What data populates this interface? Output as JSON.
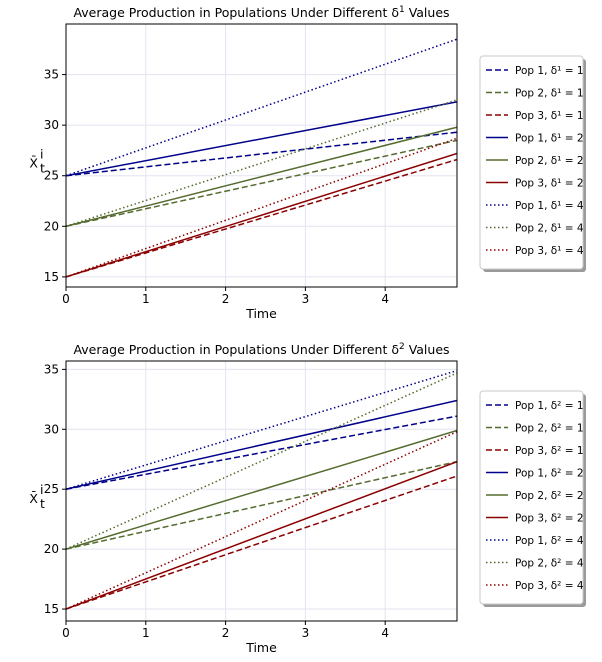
{
  "chart_data": [
    {
      "type": "line",
      "title": "Average Production in Populations Under Different δ",
      "title_sup": "1",
      "title_tail": " Values",
      "ylabel": "X̄",
      "ylabel_sup": "i",
      "ylabel_sub": "t",
      "xlabel": "Time",
      "xlim": [
        0,
        4.9
      ],
      "ylim": [
        14,
        40
      ],
      "xticks": [
        "0",
        "1",
        "2",
        "3",
        "4"
      ],
      "yticks": [
        "15",
        "20",
        "25",
        "30",
        "35"
      ],
      "xtick_values": [
        0,
        1,
        2,
        3,
        4
      ],
      "ytick_values": [
        15,
        20,
        25,
        30,
        35
      ],
      "grid": true,
      "legend_position": "right",
      "series": [
        {
          "name": "Pop 1, δ¹ = 1",
          "color": "#00008b",
          "dash": "dashed",
          "x": [
            0,
            4.9
          ],
          "y": [
            25,
            29.3
          ]
        },
        {
          "name": "Pop 2, δ¹ = 1",
          "color": "#556b2f",
          "dash": "dashed",
          "x": [
            0,
            4.9
          ],
          "y": [
            20,
            28.5
          ]
        },
        {
          "name": "Pop 3, δ¹ = 1",
          "color": "#8b0000",
          "dash": "dashed",
          "x": [
            0,
            4.9
          ],
          "y": [
            15,
            26.6
          ]
        },
        {
          "name": "Pop 1, δ¹ = 2",
          "color": "#00008b",
          "dash": "solid",
          "x": [
            0,
            4.9
          ],
          "y": [
            25,
            32.3
          ]
        },
        {
          "name": "Pop 2, δ¹ = 2",
          "color": "#556b2f",
          "dash": "solid",
          "x": [
            0,
            4.9
          ],
          "y": [
            20,
            29.8
          ]
        },
        {
          "name": "Pop 3, δ¹ = 2",
          "color": "#8b0000",
          "dash": "solid",
          "x": [
            0,
            4.9
          ],
          "y": [
            15,
            27.2
          ]
        },
        {
          "name": "Pop 1, δ¹ = 4",
          "color": "#00008b",
          "dash": "dotted",
          "x": [
            0,
            4.9
          ],
          "y": [
            25,
            38.5
          ]
        },
        {
          "name": "Pop 2, δ¹ = 4",
          "color": "#556b2f",
          "dash": "dotted",
          "x": [
            0,
            4.9
          ],
          "y": [
            20,
            32.5
          ]
        },
        {
          "name": "Pop 3, δ¹ = 4",
          "color": "#8b0000",
          "dash": "dotted",
          "x": [
            0,
            4.9
          ],
          "y": [
            15,
            28.7
          ]
        }
      ]
    },
    {
      "type": "line",
      "title": "Average Production in Populations Under Different δ",
      "title_sup": "2",
      "title_tail": " Values",
      "ylabel": "X̄",
      "ylabel_sup": "i",
      "ylabel_sub": "t",
      "xlabel": "Time",
      "xlim": [
        0,
        4.9
      ],
      "ylim": [
        14,
        35.7
      ],
      "xticks": [
        "0",
        "1",
        "2",
        "3",
        "4"
      ],
      "yticks": [
        "15",
        "20",
        "25",
        "30",
        "35"
      ],
      "xtick_values": [
        0,
        1,
        2,
        3,
        4
      ],
      "ytick_values": [
        15,
        20,
        25,
        30,
        35
      ],
      "grid": true,
      "legend_position": "right",
      "series": [
        {
          "name": "Pop 1, δ² = 1",
          "color": "#00008b",
          "dash": "dashed",
          "x": [
            0,
            4.9
          ],
          "y": [
            25,
            31.1
          ]
        },
        {
          "name": "Pop 2, δ² = 1",
          "color": "#556b2f",
          "dash": "dashed",
          "x": [
            0,
            4.9
          ],
          "y": [
            20,
            27.3
          ]
        },
        {
          "name": "Pop 3, δ² = 1",
          "color": "#8b0000",
          "dash": "dashed",
          "x": [
            0,
            4.9
          ],
          "y": [
            15,
            26.1
          ]
        },
        {
          "name": "Pop 1, δ² = 2",
          "color": "#00008b",
          "dash": "solid",
          "x": [
            0,
            4.9
          ],
          "y": [
            25,
            32.4
          ]
        },
        {
          "name": "Pop 2, δ² = 2",
          "color": "#556b2f",
          "dash": "solid",
          "x": [
            0,
            4.9
          ],
          "y": [
            20,
            29.9
          ]
        },
        {
          "name": "Pop 3, δ² = 2",
          "color": "#8b0000",
          "dash": "solid",
          "x": [
            0,
            4.9
          ],
          "y": [
            15,
            27.3
          ]
        },
        {
          "name": "Pop 1, δ² = 4",
          "color": "#00008b",
          "dash": "dotted",
          "x": [
            0,
            4.9
          ],
          "y": [
            25,
            34.9
          ]
        },
        {
          "name": "Pop 2, δ² = 4",
          "color": "#556b2f",
          "dash": "dotted",
          "x": [
            0,
            4.9
          ],
          "y": [
            20,
            34.7
          ]
        },
        {
          "name": "Pop 3, δ² = 4",
          "color": "#8b0000",
          "dash": "dotted",
          "x": [
            0,
            4.9
          ],
          "y": [
            15,
            29.8
          ]
        }
      ]
    }
  ]
}
